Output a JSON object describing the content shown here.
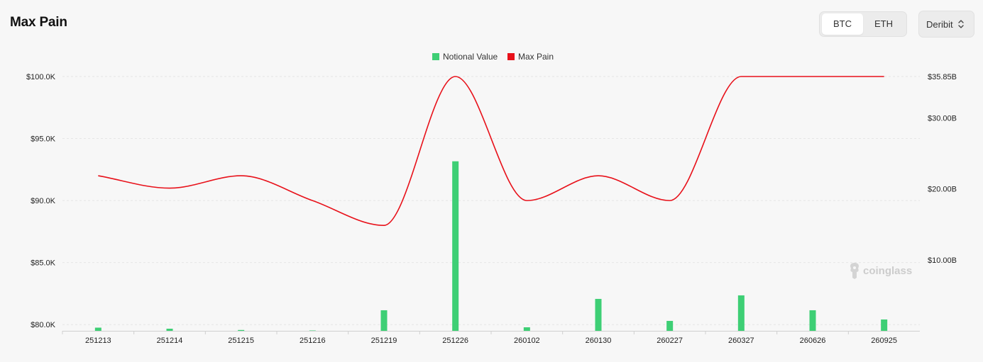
{
  "header": {
    "title": "Max Pain",
    "tabs": [
      {
        "label": "BTC",
        "active": true
      },
      {
        "label": "ETH",
        "active": false
      }
    ],
    "exchange": "Deribit"
  },
  "watermark": "coinglass",
  "colors": {
    "notional": "#3ecf75",
    "maxpain": "#e8111a"
  },
  "chart_data": {
    "type": "bar",
    "categories": [
      "251213",
      "251214",
      "251215",
      "251216",
      "251219",
      "251226",
      "260102",
      "260130",
      "260227",
      "260327",
      "260626",
      "260925"
    ],
    "series": [
      {
        "name": "Notional Value",
        "type": "bar",
        "axis": "right",
        "values": [
          0.45,
          0.3,
          0.12,
          0.05,
          2.9,
          23.9,
          0.5,
          4.5,
          1.4,
          5.0,
          2.9,
          1.6
        ]
      },
      {
        "name": "Max Pain",
        "type": "line",
        "axis": "left",
        "values": [
          92000,
          91000,
          92000,
          90000,
          88000,
          100000,
          90000,
          92000,
          90000,
          100000,
          100000,
          100000
        ]
      }
    ],
    "left_axis": {
      "ticks": [
        "$100.0K",
        "$95.0K",
        "$90.0K",
        "$85.0K",
        "$80.0K"
      ],
      "min": 79500,
      "max": 100000
    },
    "right_axis": {
      "ticks": [
        "$35.85B",
        "$30.00B",
        "$20.00B",
        "$10.00B"
      ],
      "tick_values": [
        35.85,
        30,
        20,
        10
      ],
      "min": 0,
      "max": 35.85
    },
    "legend": "top-center"
  }
}
